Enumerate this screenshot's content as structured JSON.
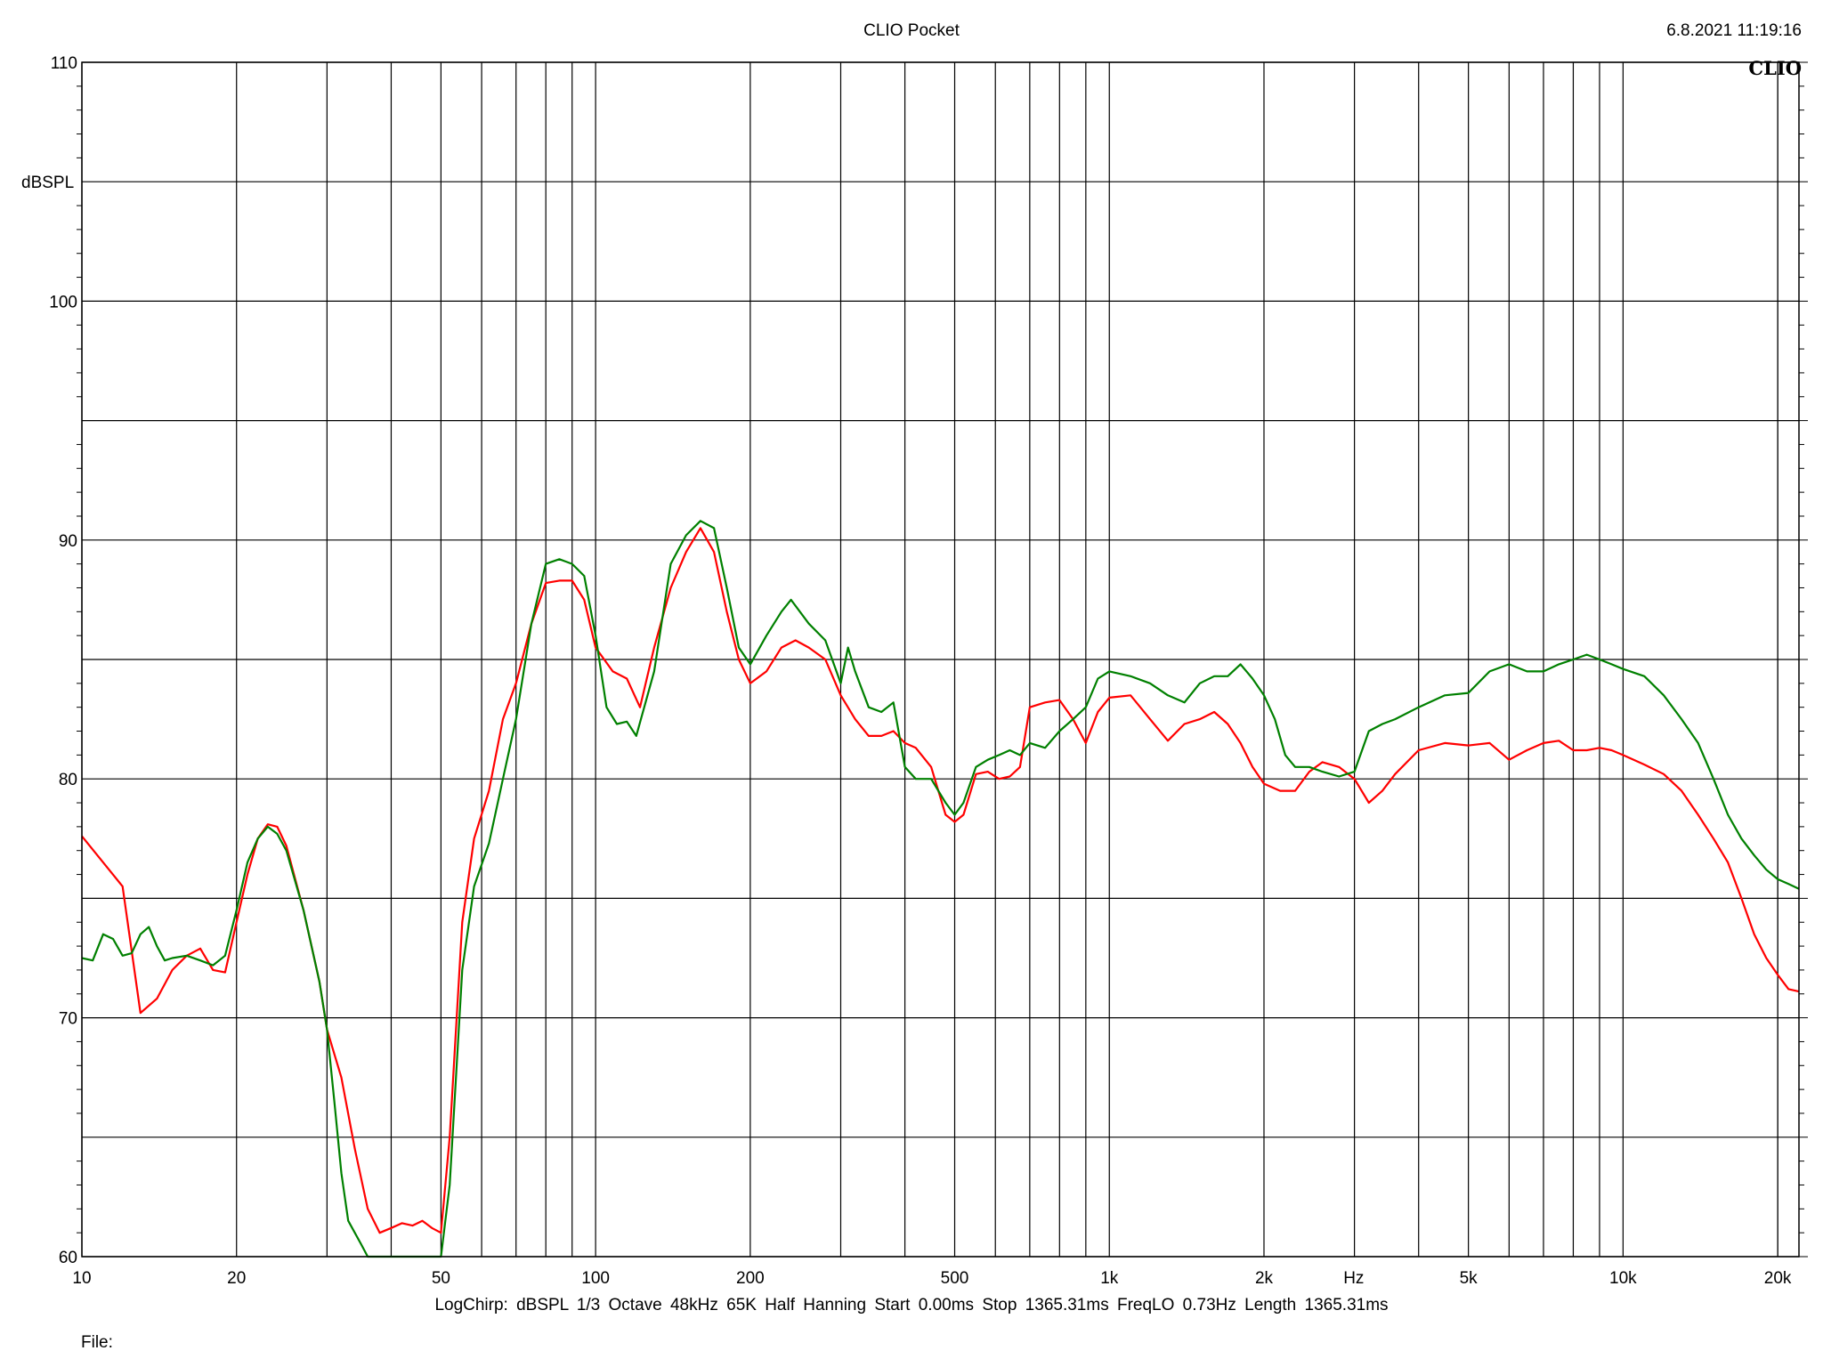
{
  "header": {
    "title": "CLIO Pocket",
    "timestamp": "6.8.2021 11:19:16",
    "logo": "CLIO"
  },
  "footer": {
    "settings": "LogChirp:  dBSPL   1/3 Octave   48kHz   65K   Half Hanning   Start 0.00ms    Stop 1365.31ms    FreqLO 0.73Hz    Length 1365.31ms",
    "file_label": "File:"
  },
  "chart_data": {
    "type": "line",
    "title": "CLIO Pocket",
    "xlabel": "Hz",
    "ylabel": "dBSPL",
    "x_scale": "log",
    "xlim": [
      10,
      22000
    ],
    "ylim": [
      60,
      110
    ],
    "grid": true,
    "x_ticks": [
      {
        "value": 10,
        "label": "10"
      },
      {
        "value": 20,
        "label": "20"
      },
      {
        "value": 50,
        "label": "50"
      },
      {
        "value": 100,
        "label": "100"
      },
      {
        "value": 200,
        "label": "200"
      },
      {
        "value": 500,
        "label": "500"
      },
      {
        "value": 1000,
        "label": "1k"
      },
      {
        "value": 2000,
        "label": "2k"
      },
      {
        "value": 5000,
        "label": "5k"
      },
      {
        "value": 10000,
        "label": "10k"
      },
      {
        "value": 20000,
        "label": "20k"
      }
    ],
    "y_ticks": [
      {
        "value": 60,
        "label": "60"
      },
      {
        "value": 70,
        "label": "70"
      },
      {
        "value": 80,
        "label": "80"
      },
      {
        "value": 90,
        "label": "90"
      },
      {
        "value": 100,
        "label": "100"
      },
      {
        "value": 110,
        "label": "110"
      }
    ],
    "colors": {
      "red": "#ff0000",
      "green": "#008000",
      "grid": "#000000"
    },
    "series": [
      {
        "color": "#ff0000",
        "points": [
          [
            10,
            77.6
          ],
          [
            11,
            76.5
          ],
          [
            12,
            75.5
          ],
          [
            13,
            70.2
          ],
          [
            14,
            70.8
          ],
          [
            15,
            72.0
          ],
          [
            16,
            72.6
          ],
          [
            17,
            72.9
          ],
          [
            18,
            72.0
          ],
          [
            19,
            71.9
          ],
          [
            20,
            74.0
          ],
          [
            21,
            76.0
          ],
          [
            22,
            77.5
          ],
          [
            23,
            78.1
          ],
          [
            24,
            78.0
          ],
          [
            25,
            77.2
          ],
          [
            27,
            74.5
          ],
          [
            29,
            71.5
          ],
          [
            30,
            69.5
          ],
          [
            32,
            67.5
          ],
          [
            34,
            64.5
          ],
          [
            36,
            62.0
          ],
          [
            38,
            61.0
          ],
          [
            40,
            61.2
          ],
          [
            42,
            61.4
          ],
          [
            44,
            61.3
          ],
          [
            46,
            61.5
          ],
          [
            48,
            61.2
          ],
          [
            50,
            61.0
          ],
          [
            52,
            65.0
          ],
          [
            55,
            74.0
          ],
          [
            58,
            77.5
          ],
          [
            62,
            79.5
          ],
          [
            66,
            82.5
          ],
          [
            70,
            84.0
          ],
          [
            75,
            86.5
          ],
          [
            80,
            88.2
          ],
          [
            85,
            88.3
          ],
          [
            90,
            88.3
          ],
          [
            95,
            87.5
          ],
          [
            100,
            85.5
          ],
          [
            108,
            84.5
          ],
          [
            115,
            84.2
          ],
          [
            122,
            83.0
          ],
          [
            130,
            85.5
          ],
          [
            140,
            88.0
          ],
          [
            150,
            89.5
          ],
          [
            160,
            90.5
          ],
          [
            170,
            89.5
          ],
          [
            180,
            87.0
          ],
          [
            190,
            85.0
          ],
          [
            200,
            84.0
          ],
          [
            215,
            84.5
          ],
          [
            230,
            85.5
          ],
          [
            245,
            85.8
          ],
          [
            260,
            85.5
          ],
          [
            280,
            85.0
          ],
          [
            300,
            83.5
          ],
          [
            320,
            82.5
          ],
          [
            340,
            81.8
          ],
          [
            360,
            81.8
          ],
          [
            380,
            82.0
          ],
          [
            400,
            81.5
          ],
          [
            420,
            81.3
          ],
          [
            450,
            80.5
          ],
          [
            480,
            78.5
          ],
          [
            500,
            78.2
          ],
          [
            520,
            78.5
          ],
          [
            550,
            80.2
          ],
          [
            580,
            80.3
          ],
          [
            610,
            80.0
          ],
          [
            640,
            80.1
          ],
          [
            670,
            80.5
          ],
          [
            700,
            83.0
          ],
          [
            750,
            83.2
          ],
          [
            800,
            83.3
          ],
          [
            850,
            82.5
          ],
          [
            900,
            81.5
          ],
          [
            950,
            82.8
          ],
          [
            1000,
            83.4
          ],
          [
            1100,
            83.5
          ],
          [
            1200,
            82.5
          ],
          [
            1300,
            81.6
          ],
          [
            1400,
            82.3
          ],
          [
            1500,
            82.5
          ],
          [
            1600,
            82.8
          ],
          [
            1700,
            82.3
          ],
          [
            1800,
            81.5
          ],
          [
            1900,
            80.5
          ],
          [
            2000,
            79.8
          ],
          [
            2150,
            79.5
          ],
          [
            2300,
            79.5
          ],
          [
            2450,
            80.3
          ],
          [
            2600,
            80.7
          ],
          [
            2800,
            80.5
          ],
          [
            3000,
            80.0
          ],
          [
            3200,
            79.0
          ],
          [
            3400,
            79.5
          ],
          [
            3600,
            80.2
          ],
          [
            4000,
            81.2
          ],
          [
            4500,
            81.5
          ],
          [
            5000,
            81.4
          ],
          [
            5500,
            81.5
          ],
          [
            6000,
            80.8
          ],
          [
            6500,
            81.2
          ],
          [
            7000,
            81.5
          ],
          [
            7500,
            81.6
          ],
          [
            8000,
            81.2
          ],
          [
            8500,
            81.2
          ],
          [
            9000,
            81.3
          ],
          [
            9500,
            81.2
          ],
          [
            10000,
            81.0
          ],
          [
            11000,
            80.6
          ],
          [
            12000,
            80.2
          ],
          [
            13000,
            79.5
          ],
          [
            14000,
            78.5
          ],
          [
            15000,
            77.5
          ],
          [
            16000,
            76.5
          ],
          [
            17000,
            75.0
          ],
          [
            18000,
            73.5
          ],
          [
            19000,
            72.5
          ],
          [
            20000,
            71.8
          ],
          [
            21000,
            71.2
          ],
          [
            22000,
            71.1
          ]
        ]
      },
      {
        "color": "#008000",
        "points": [
          [
            10,
            72.5
          ],
          [
            10.5,
            72.4
          ],
          [
            11,
            73.5
          ],
          [
            11.5,
            73.3
          ],
          [
            12,
            72.6
          ],
          [
            12.5,
            72.7
          ],
          [
            13,
            73.5
          ],
          [
            13.5,
            73.8
          ],
          [
            14,
            73.0
          ],
          [
            14.5,
            72.4
          ],
          [
            15,
            72.5
          ],
          [
            16,
            72.6
          ],
          [
            17,
            72.4
          ],
          [
            18,
            72.2
          ],
          [
            19,
            72.6
          ],
          [
            20,
            74.5
          ],
          [
            21,
            76.5
          ],
          [
            22,
            77.5
          ],
          [
            23,
            78.0
          ],
          [
            24,
            77.7
          ],
          [
            25,
            77.0
          ],
          [
            27,
            74.5
          ],
          [
            29,
            71.5
          ],
          [
            30,
            69.5
          ],
          [
            31,
            66.5
          ],
          [
            32,
            63.5
          ],
          [
            33,
            61.5
          ],
          [
            35,
            60.5
          ],
          [
            36,
            59.8
          ],
          [
            40,
            59.4
          ],
          [
            45,
            59.3
          ],
          [
            50,
            59.5
          ],
          [
            52,
            63.0
          ],
          [
            55,
            72.0
          ],
          [
            58,
            75.5
          ],
          [
            62,
            77.3
          ],
          [
            66,
            80.0
          ],
          [
            70,
            82.5
          ],
          [
            75,
            86.5
          ],
          [
            80,
            89.0
          ],
          [
            85,
            89.2
          ],
          [
            90,
            89.0
          ],
          [
            95,
            88.5
          ],
          [
            100,
            86.0
          ],
          [
            105,
            83.0
          ],
          [
            110,
            82.3
          ],
          [
            115,
            82.4
          ],
          [
            120,
            81.8
          ],
          [
            130,
            84.5
          ],
          [
            140,
            89.0
          ],
          [
            150,
            90.2
          ],
          [
            160,
            90.8
          ],
          [
            170,
            90.5
          ],
          [
            180,
            88.0
          ],
          [
            190,
            85.5
          ],
          [
            200,
            84.8
          ],
          [
            215,
            86.0
          ],
          [
            230,
            87.0
          ],
          [
            240,
            87.5
          ],
          [
            260,
            86.5
          ],
          [
            280,
            85.8
          ],
          [
            300,
            84.0
          ],
          [
            310,
            85.5
          ],
          [
            320,
            84.5
          ],
          [
            340,
            83.0
          ],
          [
            360,
            82.8
          ],
          [
            380,
            83.2
          ],
          [
            400,
            80.5
          ],
          [
            420,
            80.0
          ],
          [
            450,
            80.0
          ],
          [
            480,
            79.0
          ],
          [
            500,
            78.5
          ],
          [
            520,
            79.0
          ],
          [
            550,
            80.5
          ],
          [
            580,
            80.8
          ],
          [
            610,
            81.0
          ],
          [
            640,
            81.2
          ],
          [
            670,
            81.0
          ],
          [
            700,
            81.5
          ],
          [
            750,
            81.3
          ],
          [
            800,
            82.0
          ],
          [
            850,
            82.5
          ],
          [
            900,
            83.0
          ],
          [
            950,
            84.2
          ],
          [
            1000,
            84.5
          ],
          [
            1100,
            84.3
          ],
          [
            1200,
            84.0
          ],
          [
            1300,
            83.5
          ],
          [
            1400,
            83.2
          ],
          [
            1500,
            84.0
          ],
          [
            1600,
            84.3
          ],
          [
            1700,
            84.3
          ],
          [
            1800,
            84.8
          ],
          [
            1900,
            84.2
          ],
          [
            2000,
            83.5
          ],
          [
            2100,
            82.5
          ],
          [
            2200,
            81.0
          ],
          [
            2300,
            80.5
          ],
          [
            2450,
            80.5
          ],
          [
            2600,
            80.3
          ],
          [
            2800,
            80.1
          ],
          [
            3000,
            80.3
          ],
          [
            3200,
            82.0
          ],
          [
            3400,
            82.3
          ],
          [
            3600,
            82.5
          ],
          [
            4000,
            83.0
          ],
          [
            4500,
            83.5
          ],
          [
            5000,
            83.6
          ],
          [
            5500,
            84.5
          ],
          [
            6000,
            84.8
          ],
          [
            6500,
            84.5
          ],
          [
            7000,
            84.5
          ],
          [
            7500,
            84.8
          ],
          [
            8000,
            85.0
          ],
          [
            8500,
            85.2
          ],
          [
            9000,
            85.0
          ],
          [
            9500,
            84.8
          ],
          [
            10000,
            84.6
          ],
          [
            11000,
            84.3
          ],
          [
            12000,
            83.5
          ],
          [
            13000,
            82.5
          ],
          [
            14000,
            81.5
          ],
          [
            15000,
            80.0
          ],
          [
            16000,
            78.5
          ],
          [
            17000,
            77.5
          ],
          [
            18000,
            76.8
          ],
          [
            19000,
            76.2
          ],
          [
            20000,
            75.8
          ],
          [
            21000,
            75.6
          ],
          [
            22000,
            75.4
          ]
        ]
      }
    ]
  }
}
